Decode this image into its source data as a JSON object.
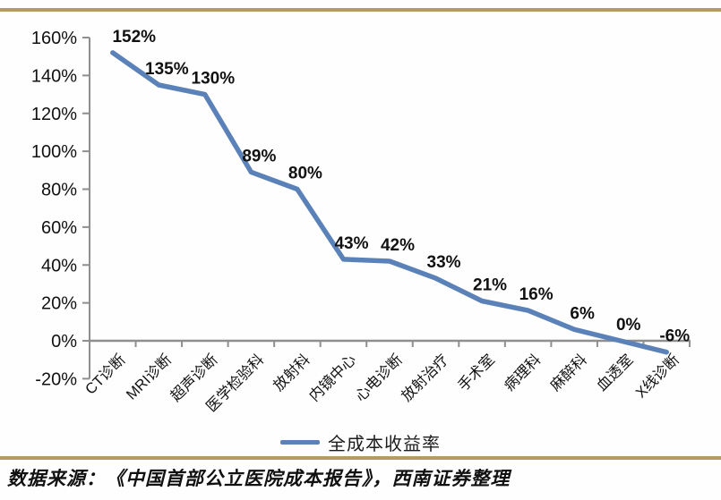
{
  "chart_data": {
    "type": "line",
    "title": "",
    "categories": [
      "CT诊断",
      "MRI诊断",
      "超声诊断",
      "医学检验科",
      "放射科",
      "内镜中心",
      "心电诊断",
      "放射治疗",
      "手术室",
      "病理科",
      "麻醉科",
      "血透室",
      "X线诊断"
    ],
    "series": [
      {
        "name": "全成本收益率",
        "values": [
          152,
          135,
          130,
          89,
          80,
          43,
          42,
          33,
          21,
          16,
          6,
          0,
          -6
        ],
        "data_labels": [
          "152%",
          "135%",
          "130%",
          "89%",
          "80%",
          "43%",
          "42%",
          "33%",
          "21%",
          "16%",
          "6%",
          "0%",
          "-6%"
        ]
      }
    ],
    "xlabel": "",
    "ylabel": "",
    "ylim": [
      -20,
      160
    ],
    "y_tick_step": 20,
    "y_tick_labels": [
      "160%",
      "140%",
      "120%",
      "100%",
      "80%",
      "60%",
      "40%",
      "20%",
      "0%",
      "-20%"
    ],
    "grid": false,
    "legend_position": "bottom",
    "x_label_rotation_deg": 45
  },
  "legend": {
    "series_label": "全成本收益率"
  },
  "source": {
    "text": "数据来源：《中国首部公立医院成本报告》，西南证券整理"
  },
  "colors": {
    "line": "#5b82b8",
    "axis": "#8f8f8f",
    "accent_gold": "#b59a62",
    "text": "#111111",
    "background": "#fefefe"
  }
}
